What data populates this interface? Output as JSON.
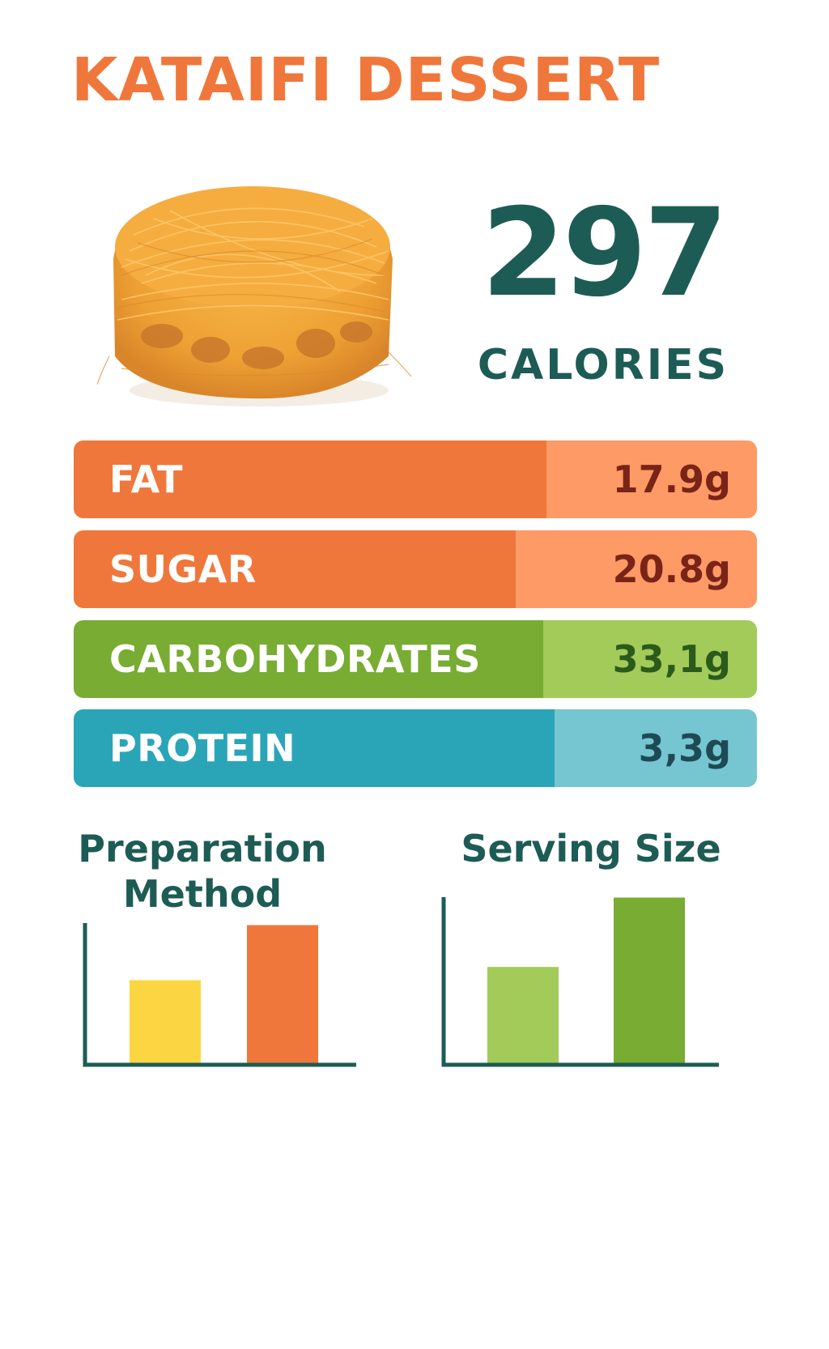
{
  "title": "KATAIFI DESSERT",
  "calories": {
    "value": "297",
    "label": "CALORIES"
  },
  "nutrients": [
    {
      "name": "FAT",
      "value": "17.9g",
      "color": "#f0773b",
      "value_bg": "#fd9a66",
      "value_color": "#7a2418"
    },
    {
      "name": "SUGAR",
      "value": "20.8g",
      "color": "#f0773b",
      "value_bg": "#fd9a66",
      "value_color": "#7a2418"
    },
    {
      "name": "CARBOHYDRATES",
      "value": "33,1g",
      "color": "#78ac32",
      "value_bg": "#a2cb59",
      "value_color": "#2b5a1c"
    },
    {
      "name": "PROTEIN",
      "value": "3,3g",
      "color": "#2aa5b8",
      "value_bg": "#76c6d1",
      "value_color": "#1d4a55"
    }
  ],
  "chart_data": [
    {
      "type": "bar",
      "title": "Preparation Method",
      "categories": [
        "",
        ""
      ],
      "values": [
        0.6,
        1.0
      ],
      "colors": [
        "#fbd642",
        "#f0773b"
      ]
    },
    {
      "type": "bar",
      "title": "Serving Size",
      "categories": [
        "",
        ""
      ],
      "values": [
        0.58,
        1.0
      ],
      "colors": [
        "#a2cb59",
        "#78ac32"
      ]
    }
  ]
}
